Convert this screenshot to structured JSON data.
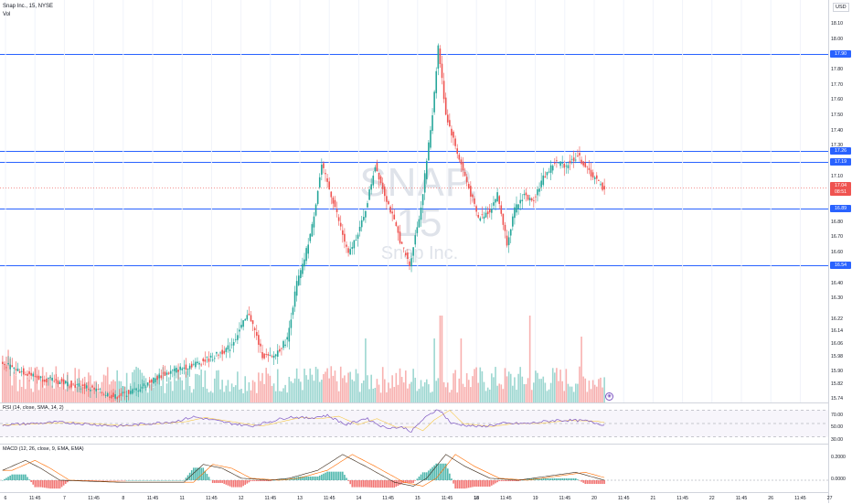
{
  "legend": {
    "symbol": "Snap Inc., 15, NYSE",
    "vol": "Vol"
  },
  "watermark": {
    "symbol": "SNAP, 15",
    "name": "Snap Inc."
  },
  "price_scale": {
    "currency": "USD",
    "ticks": [
      "18.10",
      "18.00",
      "17.80",
      "17.70",
      "17.60",
      "17.50",
      "17.40",
      "17.30",
      "17.10",
      "17.00",
      "16.80",
      "16.70",
      "16.60",
      "16.50",
      "16.40",
      "16.30",
      "16.22",
      "16.14",
      "16.06",
      "15.98",
      "15.90",
      "15.82",
      "15.74"
    ],
    "level_tags": [
      "17.90",
      "17.26",
      "17.19",
      "16.89",
      "16.54"
    ],
    "current_price": "17.04",
    "countdown": "08:51"
  },
  "rsi": {
    "legend": "RSI (14, close, SMA, 14, 2)",
    "ticks": [
      "70.00",
      "50.00",
      "30.00"
    ]
  },
  "macd": {
    "legend": "MACD (12, 26, close, 9, EMA, EMA)",
    "ticks": [
      "0.2000",
      "0.0000"
    ]
  },
  "time_axis": [
    {
      "label": "6",
      "bold": false
    },
    {
      "label": "11:45",
      "bold": false
    },
    {
      "label": "7",
      "bold": false
    },
    {
      "label": "11:45",
      "bold": false
    },
    {
      "label": "8",
      "bold": false
    },
    {
      "label": "11:45",
      "bold": false
    },
    {
      "label": "11",
      "bold": false
    },
    {
      "label": "11:45",
      "bold": false
    },
    {
      "label": "12",
      "bold": false
    },
    {
      "label": "11:45",
      "bold": false
    },
    {
      "label": "13",
      "bold": false
    },
    {
      "label": "11:45",
      "bold": false
    },
    {
      "label": "14",
      "bold": false
    },
    {
      "label": "11:45",
      "bold": false
    },
    {
      "label": "15",
      "bold": false
    },
    {
      "label": "11:45",
      "bold": false
    },
    {
      "label": "18",
      "bold": true
    },
    {
      "label": "11:45",
      "bold": false
    },
    {
      "label": "19",
      "bold": false
    },
    {
      "label": "11:45",
      "bold": false
    },
    {
      "label": "20",
      "bold": false
    },
    {
      "label": "11:45",
      "bold": false
    },
    {
      "label": "21",
      "bold": false
    },
    {
      "label": "11:45",
      "bold": false
    },
    {
      "label": "22",
      "bold": false
    },
    {
      "label": "11:45",
      "bold": false
    },
    {
      "label": "26",
      "bold": false
    },
    {
      "label": "11:45",
      "bold": false
    },
    {
      "label": "27",
      "bold": false
    }
  ],
  "colors": {
    "up": "#26a69a",
    "down": "#ef5350",
    "level_line": "#2962ff",
    "rsi_line": "#7e57c2",
    "macd_line": "#2962ff",
    "signal_line": "#ff6d00"
  },
  "chart_data": {
    "type": "candlestick",
    "title": "Snap Inc., 15, NYSE",
    "ylim": [
      15.74,
      18.15
    ],
    "horizontal_levels": [
      17.9,
      17.26,
      17.19,
      16.89,
      16.54
    ],
    "last_price": 17.04,
    "anchors": [
      [
        0,
        15.95
      ],
      [
        20,
        15.86
      ],
      [
        45,
        15.8
      ],
      [
        60,
        15.74
      ],
      [
        70,
        15.78
      ],
      [
        85,
        15.88
      ],
      [
        100,
        15.94
      ],
      [
        110,
        15.98
      ],
      [
        120,
        16.05
      ],
      [
        130,
        16.26
      ],
      [
        137,
        16.0
      ],
      [
        142,
        15.98
      ],
      [
        150,
        16.1
      ],
      [
        155,
        16.45
      ],
      [
        158,
        16.55
      ],
      [
        163,
        16.8
      ],
      [
        168,
        17.18
      ],
      [
        175,
        16.92
      ],
      [
        182,
        16.62
      ],
      [
        190,
        16.85
      ],
      [
        196,
        17.18
      ],
      [
        204,
        16.9
      ],
      [
        210,
        16.68
      ],
      [
        214,
        16.56
      ],
      [
        220,
        16.92
      ],
      [
        226,
        17.5
      ],
      [
        229,
        17.92
      ],
      [
        233,
        17.5
      ],
      [
        240,
        17.22
      ],
      [
        246,
        17.0
      ],
      [
        250,
        16.85
      ],
      [
        256,
        16.9
      ],
      [
        260,
        17.0
      ],
      [
        265,
        16.7
      ],
      [
        269,
        16.9
      ],
      [
        274,
        17.0
      ],
      [
        278,
        16.95
      ],
      [
        284,
        17.1
      ],
      [
        290,
        17.2
      ],
      [
        296,
        17.18
      ],
      [
        302,
        17.24
      ],
      [
        308,
        17.14
      ],
      [
        315,
        17.04
      ]
    ],
    "rsi_ylim": [
      20,
      80
    ],
    "rsi_anchors": [
      [
        0,
        48
      ],
      [
        30,
        52
      ],
      [
        60,
        46
      ],
      [
        90,
        53
      ],
      [
        100,
        60
      ],
      [
        120,
        50
      ],
      [
        130,
        46
      ],
      [
        150,
        60
      ],
      [
        160,
        58
      ],
      [
        170,
        62
      ],
      [
        180,
        48
      ],
      [
        190,
        58
      ],
      [
        200,
        44
      ],
      [
        210,
        44
      ],
      [
        214,
        38
      ],
      [
        220,
        56
      ],
      [
        228,
        72
      ],
      [
        235,
        50
      ],
      [
        250,
        45
      ],
      [
        262,
        50
      ],
      [
        275,
        50
      ],
      [
        290,
        55
      ],
      [
        305,
        54
      ],
      [
        315,
        48
      ]
    ],
    "macd_ylim": [
      -0.12,
      0.36
    ],
    "macd_anchors": [
      [
        0,
        0.1
      ],
      [
        12,
        0.2
      ],
      [
        20,
        0.12
      ],
      [
        30,
        0.0
      ],
      [
        60,
        -0.02
      ],
      [
        95,
        -0.02
      ],
      [
        105,
        0.16
      ],
      [
        115,
        0.12
      ],
      [
        125,
        0.02
      ],
      [
        140,
        0.0
      ],
      [
        150,
        0.02
      ],
      [
        165,
        0.1
      ],
      [
        178,
        0.26
      ],
      [
        190,
        0.14
      ],
      [
        205,
        -0.02
      ],
      [
        215,
        -0.06
      ],
      [
        222,
        0.02
      ],
      [
        232,
        0.26
      ],
      [
        242,
        0.14
      ],
      [
        255,
        0.02
      ],
      [
        270,
        0.0
      ],
      [
        285,
        0.04
      ],
      [
        300,
        0.08
      ],
      [
        315,
        0.0
      ]
    ]
  }
}
